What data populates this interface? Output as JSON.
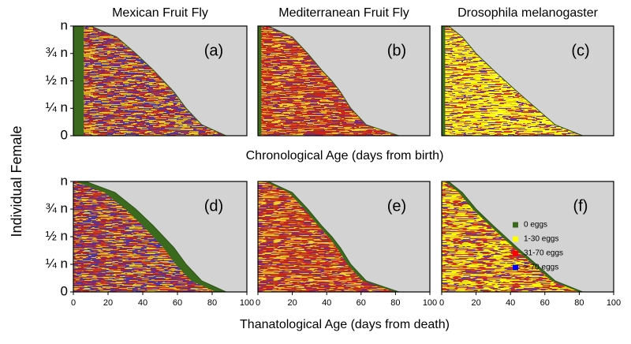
{
  "figure": {
    "ylabel": "Individual Female",
    "xlabels": [
      "Chronological Age (days from birth)",
      "Thanatological Age (days from death)"
    ],
    "legend": [
      {
        "name": "0 eggs",
        "color": "#3b6a1f"
      },
      {
        "name": "1-30 eggs",
        "color": "#ffff00"
      },
      {
        "name": "31-70 eggs",
        "color": "#ff0000"
      },
      {
        "name": "> 70 eggs",
        "color": "#0000ff"
      }
    ]
  },
  "chart_data": [
    {
      "type": "area",
      "title": "Mexican Fruit Fly",
      "label": "(a)",
      "alignment": "birth",
      "green_days": 6,
      "x": [
        10,
        25,
        36,
        46,
        52,
        58,
        65,
        74,
        88
      ],
      "y": [
        1,
        0.9,
        0.75,
        0.6,
        0.5,
        0.4,
        0.25,
        0.1,
        0
      ],
      "xlim": [
        0,
        100
      ],
      "ylim": [
        0,
        1
      ],
      "fill_colors": [
        "#b0202a",
        "#6a2c8e",
        "#d8a020",
        "#c83a20",
        "#4a3aa0",
        "#e0c830"
      ],
      "yticks": [
        {
          "value": 1,
          "label": "n"
        },
        {
          "value": 0.75,
          "label": "¾ n"
        },
        {
          "value": 0.5,
          "label": "½ n"
        },
        {
          "value": 0.25,
          "label": "¼ n"
        },
        0
      ]
    },
    {
      "type": "area",
      "title": "Mediterranean Fruit Fly",
      "label": "(b)",
      "alignment": "birth",
      "green_days": 2,
      "x": [
        6,
        20,
        29,
        37,
        43,
        48,
        54,
        63,
        82
      ],
      "y": [
        1,
        0.9,
        0.75,
        0.6,
        0.5,
        0.4,
        0.25,
        0.1,
        0
      ],
      "xlim": [
        0,
        100
      ],
      "ylim": [
        0,
        1
      ],
      "fill_colors": [
        "#d02020",
        "#b03020",
        "#e8a020",
        "#f0d030",
        "#7a2a7a",
        "#c84a20"
      ]
    },
    {
      "type": "area",
      "title": "Drosophila melanogaster",
      "label": "(c)",
      "alignment": "birth",
      "green_days": 2,
      "x": [
        4,
        12,
        20,
        30,
        37,
        44,
        55,
        66,
        82
      ],
      "y": [
        1,
        0.9,
        0.75,
        0.6,
        0.5,
        0.4,
        0.25,
        0.1,
        0
      ],
      "xlim": [
        0,
        100
      ],
      "ylim": [
        0,
        1
      ],
      "fill_colors": [
        "#ffff00",
        "#f0e020",
        "#e8c818",
        "#d83a20",
        "#ffff30",
        "#6a3a9a"
      ]
    },
    {
      "type": "area",
      "label": "(d)",
      "alignment": "death",
      "green_days": 6,
      "x": [
        7,
        24,
        36,
        46,
        52,
        58,
        65,
        74,
        88
      ],
      "y": [
        1,
        0.9,
        0.75,
        0.6,
        0.5,
        0.4,
        0.25,
        0.1,
        0
      ],
      "xlim": [
        0,
        100
      ],
      "ylim": [
        0,
        1
      ],
      "fill_colors": [
        "#b0202a",
        "#6a2c8e",
        "#d8a020",
        "#c83a20",
        "#e0c830",
        "#4a3aa0"
      ],
      "yticks": [
        {
          "value": 1,
          "label": "n"
        },
        {
          "value": 0.75,
          "label": "¾ n"
        },
        {
          "value": 0.5,
          "label": "½ n"
        },
        {
          "value": 0.25,
          "label": "¼ n"
        },
        0
      ],
      "xticks": [
        0,
        20,
        40,
        60,
        80,
        100
      ]
    },
    {
      "type": "area",
      "label": "(e)",
      "alignment": "death",
      "green_days": 2,
      "x": [
        6,
        20,
        29,
        37,
        43,
        48,
        54,
        63,
        82
      ],
      "y": [
        1,
        0.9,
        0.75,
        0.6,
        0.5,
        0.4,
        0.25,
        0.1,
        0
      ],
      "xlim": [
        0,
        100
      ],
      "ylim": [
        0,
        1
      ],
      "fill_colors": [
        "#d02020",
        "#b03020",
        "#e8a020",
        "#f0d030",
        "#7a2a7a",
        "#c84a20"
      ],
      "xticks": [
        0,
        20,
        40,
        60,
        80,
        100
      ]
    },
    {
      "type": "area",
      "label": "(f)",
      "alignment": "death",
      "green_days": 2,
      "x": [
        4,
        12,
        20,
        30,
        37,
        44,
        55,
        66,
        82
      ],
      "y": [
        1,
        0.9,
        0.75,
        0.6,
        0.5,
        0.4,
        0.25,
        0.1,
        0
      ],
      "xlim": [
        0,
        100
      ],
      "ylim": [
        0,
        1
      ],
      "fill_colors": [
        "#ffff00",
        "#e8c818",
        "#d83a20",
        "#6a3a9a",
        "#f0e020",
        "#c02828"
      ],
      "xticks": [
        0,
        20,
        40,
        60,
        80,
        100
      ],
      "legend": true
    }
  ]
}
